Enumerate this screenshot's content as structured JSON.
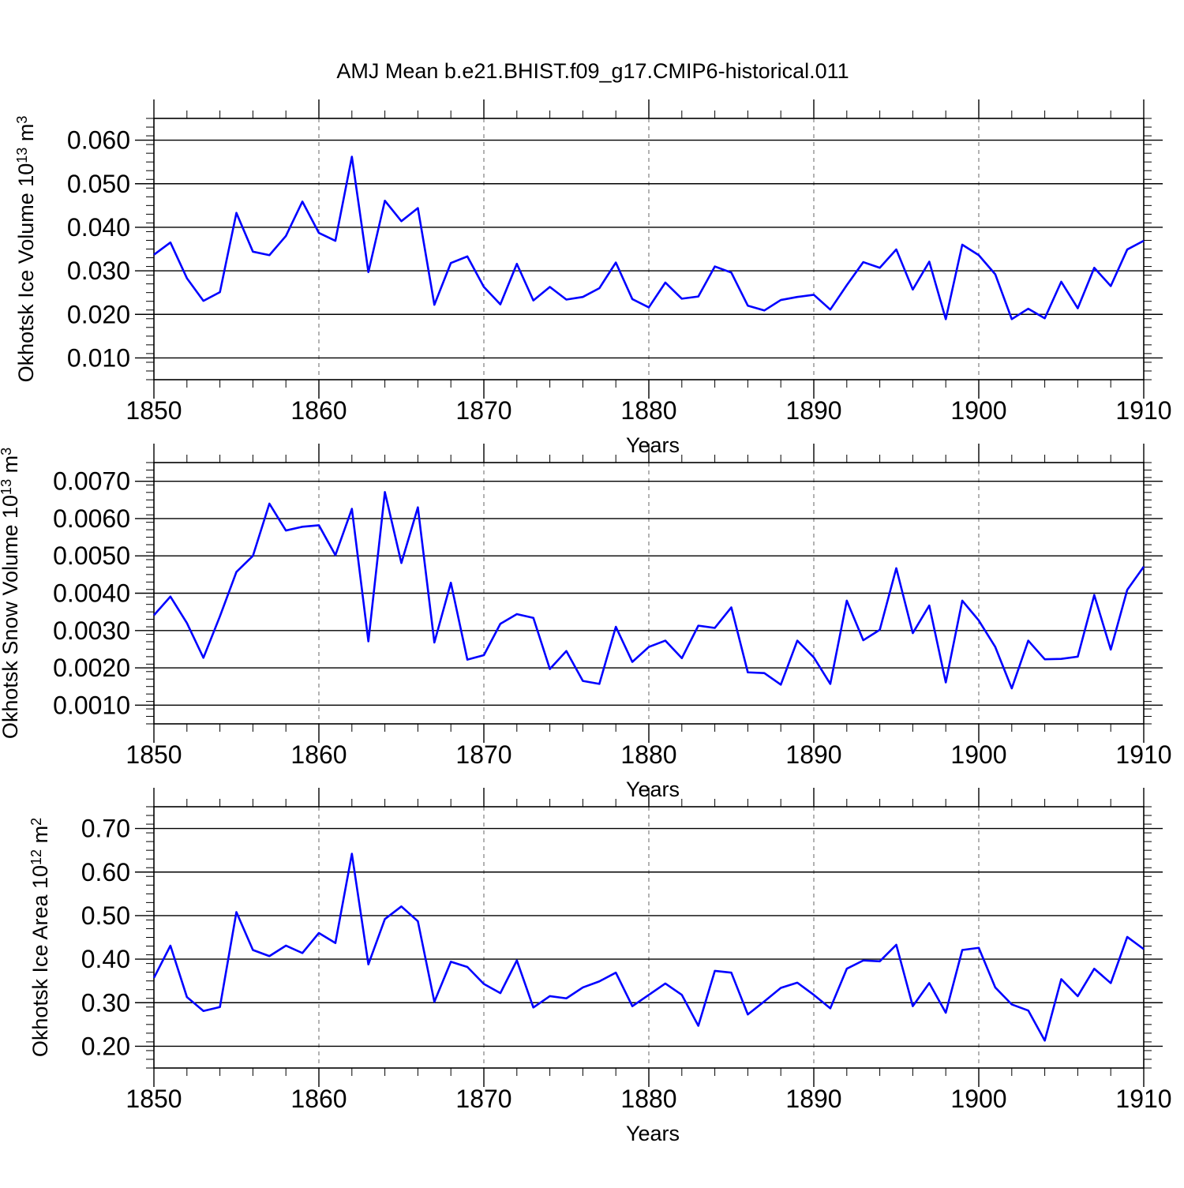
{
  "title": "AMJ Mean b.e21.BHIST.f09_g17.CMIP6-historical.011",
  "line_color": "#0000ff",
  "chart_data": [
    {
      "type": "line",
      "title": "",
      "xlabel": "Years",
      "ylabel": {
        "main": "Okhotsk Ice Volume 10",
        "exp": "13",
        "unit": " m",
        "unit_exp": "3"
      },
      "xlim": [
        1850,
        1910
      ],
      "ylim": [
        0.005,
        0.065
      ],
      "xticks": [
        1850,
        1860,
        1870,
        1880,
        1890,
        1900,
        1910
      ],
      "yticks": [
        0.01,
        0.02,
        0.03,
        0.04,
        0.05,
        0.06
      ],
      "ytick_labels": [
        "0.010",
        "0.020",
        "0.030",
        "0.040",
        "0.050",
        "0.060"
      ],
      "grid": "vertical dashed at major x ticks",
      "series": [
        {
          "x_start": 1850,
          "values": [
            0.0337,
            0.0365,
            0.0283,
            0.0231,
            0.0251,
            0.0433,
            0.0344,
            0.0336,
            0.038,
            0.0459,
            0.0387,
            0.0369,
            0.0562,
            0.0297,
            0.0461,
            0.0414,
            0.0444,
            0.0222,
            0.0318,
            0.0333,
            0.0263,
            0.0223,
            0.0316,
            0.0232,
            0.0263,
            0.0234,
            0.024,
            0.026,
            0.0319,
            0.0235,
            0.0216,
            0.0273,
            0.0236,
            0.0241,
            0.031,
            0.0296,
            0.022,
            0.0209,
            0.0233,
            0.024,
            0.0245,
            0.0211,
            0.0267,
            0.032,
            0.0307,
            0.0349,
            0.0257,
            0.0321,
            0.0189,
            0.036,
            0.0336,
            0.0292,
            0.0189,
            0.0213,
            0.0191,
            0.0275,
            0.0214,
            0.0307,
            0.0265,
            0.0349,
            0.0369
          ]
        }
      ]
    },
    {
      "type": "line",
      "title": "",
      "xlabel": "Years",
      "ylabel": {
        "main": "Okhotsk Snow Volume 10",
        "exp": "13",
        "unit": " m",
        "unit_exp": "3"
      },
      "xlim": [
        1850,
        1910
      ],
      "ylim": [
        0.0005,
        0.0075
      ],
      "xticks": [
        1850,
        1860,
        1870,
        1880,
        1890,
        1900,
        1910
      ],
      "yticks": [
        0.001,
        0.002,
        0.003,
        0.004,
        0.005,
        0.006,
        0.007
      ],
      "ytick_labels": [
        "0.0010",
        "0.0020",
        "0.0030",
        "0.0040",
        "0.0050",
        "0.0060",
        "0.0070"
      ],
      "grid": "vertical dashed at major x ticks",
      "series": [
        {
          "x_start": 1850,
          "values": [
            0.00341,
            0.00391,
            0.0032,
            0.00227,
            0.00338,
            0.00457,
            0.005,
            0.0064,
            0.00568,
            0.00578,
            0.00582,
            0.00502,
            0.00626,
            0.00271,
            0.00671,
            0.00481,
            0.0063,
            0.00268,
            0.00428,
            0.00222,
            0.00234,
            0.00318,
            0.00344,
            0.00334,
            0.00197,
            0.00245,
            0.00165,
            0.00157,
            0.0031,
            0.00216,
            0.00256,
            0.00273,
            0.00226,
            0.00313,
            0.00307,
            0.00362,
            0.00188,
            0.00186,
            0.00155,
            0.00273,
            0.00228,
            0.00157,
            0.0038,
            0.00274,
            0.00302,
            0.00467,
            0.00293,
            0.00367,
            0.00161,
            0.0038,
            0.00327,
            0.00256,
            0.00145,
            0.00273,
            0.00223,
            0.00224,
            0.0023,
            0.00395,
            0.00249,
            0.00409,
            0.00471
          ]
        }
      ]
    },
    {
      "type": "line",
      "title": "",
      "xlabel": "Years",
      "ylabel": {
        "main": "Okhotsk Ice Area 10",
        "exp": "12",
        "unit": " m",
        "unit_exp": "2"
      },
      "xlim": [
        1850,
        1910
      ],
      "ylim": [
        0.15,
        0.75
      ],
      "xticks": [
        1850,
        1860,
        1870,
        1880,
        1890,
        1900,
        1910
      ],
      "yticks": [
        0.2,
        0.3,
        0.4,
        0.5,
        0.6,
        0.7
      ],
      "ytick_labels": [
        "0.20",
        "0.30",
        "0.40",
        "0.50",
        "0.60",
        "0.70"
      ],
      "grid": "vertical dashed at major x ticks",
      "series": [
        {
          "x_start": 1850,
          "values": [
            0.357,
            0.431,
            0.313,
            0.281,
            0.29,
            0.508,
            0.421,
            0.407,
            0.431,
            0.414,
            0.46,
            0.437,
            0.642,
            0.388,
            0.492,
            0.521,
            0.487,
            0.302,
            0.394,
            0.382,
            0.343,
            0.322,
            0.397,
            0.289,
            0.315,
            0.31,
            0.335,
            0.349,
            0.369,
            0.292,
            0.318,
            0.344,
            0.318,
            0.247,
            0.373,
            0.369,
            0.273,
            0.303,
            0.334,
            0.346,
            0.318,
            0.287,
            0.378,
            0.397,
            0.395,
            0.433,
            0.292,
            0.345,
            0.277,
            0.421,
            0.426,
            0.335,
            0.296,
            0.282,
            0.213,
            0.354,
            0.315,
            0.378,
            0.345,
            0.451,
            0.423
          ]
        }
      ]
    }
  ]
}
